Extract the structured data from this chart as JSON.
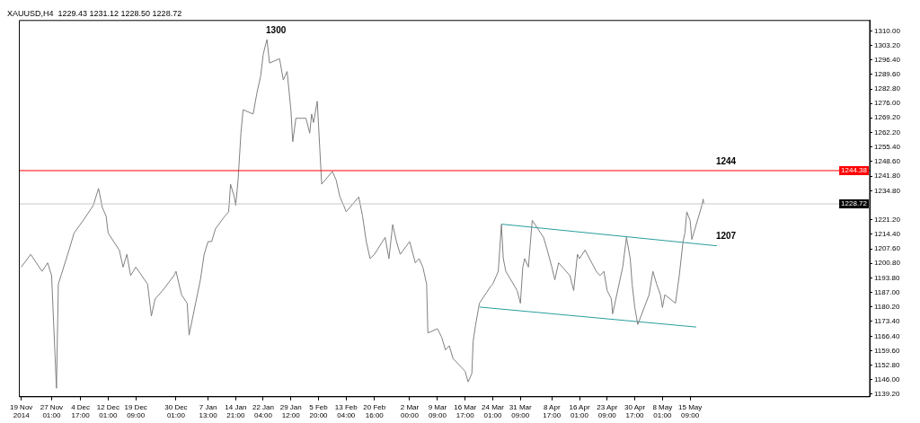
{
  "chart_data": {
    "type": "line",
    "title": "XAUUSD,H4  1229.43 1231.12 1228.50 1228.72",
    "xlim": [
      "2014-11-18T12:00",
      "2015-07-02T00:00"
    ],
    "xticks": [
      {
        "value": "2014-11-19T00:00",
        "label": "19 Nov 2014"
      },
      {
        "value": "2014-11-27T01:00",
        "label": "27 Nov 01:00"
      },
      {
        "value": "2014-12-04T17:00",
        "label": "4 Dec 17:00"
      },
      {
        "value": "2014-12-12T01:00",
        "label": "12 Dec 01:00"
      },
      {
        "value": "2014-12-19T09:00",
        "label": "19 Dec 09:00"
      },
      {
        "value": "2014-12-30T01:00",
        "label": "30 Dec 01:00"
      },
      {
        "value": "2015-01-07T13:00",
        "label": "7 Jan 13:00"
      },
      {
        "value": "2015-01-14T21:00",
        "label": "14 Jan 21:00"
      },
      {
        "value": "2015-01-22T04:00",
        "label": "22 Jan 04:00"
      },
      {
        "value": "2015-01-29T12:00",
        "label": "29 Jan 12:00"
      },
      {
        "value": "2015-02-05T20:00",
        "label": "5 Feb 20:00"
      },
      {
        "value": "2015-02-13T04:00",
        "label": "13 Feb 04:00"
      },
      {
        "value": "2015-02-20T16:00",
        "label": "20 Feb 16:00"
      },
      {
        "value": "2015-03-02T00:00",
        "label": "2 Mar 00:00"
      },
      {
        "value": "2015-03-09T09:00",
        "label": "9 Mar 09:00"
      },
      {
        "value": "2015-03-16T17:00",
        "label": "16 Mar 17:00"
      },
      {
        "value": "2015-03-24T01:00",
        "label": "24 Mar 01:00"
      },
      {
        "value": "2015-03-31T09:00",
        "label": "31 Mar 09:00"
      },
      {
        "value": "2015-04-08T17:00",
        "label": "8 Apr 17:00"
      },
      {
        "value": "2015-04-16T01:00",
        "label": "16 Apr 01:00"
      },
      {
        "value": "2015-04-23T09:00",
        "label": "23 Apr 09:00"
      },
      {
        "value": "2015-04-30T17:00",
        "label": "30 Apr 17:00"
      },
      {
        "value": "2015-05-08T01:00",
        "label": "8 May 01:00"
      },
      {
        "value": "2015-05-15T09:00",
        "label": "15 May 09:00"
      }
    ],
    "ylim": [
      1138,
      1315
    ],
    "yticks": [
      {
        "value": 1139.2,
        "label": "1139.20"
      },
      {
        "value": 1146,
        "label": "1146.00"
      },
      {
        "value": 1152.8,
        "label": "1152.80"
      },
      {
        "value": 1159.6,
        "label": "1159.60"
      },
      {
        "value": 1166.4,
        "label": "1166.40"
      },
      {
        "value": 1173.4,
        "label": "1173.40"
      },
      {
        "value": 1180.2,
        "label": "1180.20"
      },
      {
        "value": 1187,
        "label": "1187.00"
      },
      {
        "value": 1193.8,
        "label": "1193.80"
      },
      {
        "value": 1200.8,
        "label": "1200.80"
      },
      {
        "value": 1207.6,
        "label": "1207.60"
      },
      {
        "value": 1214.4,
        "label": "1214.40"
      },
      {
        "value": 1221.2,
        "label": "1221.20"
      },
      {
        "value": 1234.8,
        "label": "1234.80"
      },
      {
        "value": 1241.8,
        "label": "1241.80"
      },
      {
        "value": 1248.6,
        "label": "1248.60"
      },
      {
        "value": 1255.4,
        "label": "1255.40"
      },
      {
        "value": 1262.2,
        "label": "1262.20"
      },
      {
        "value": 1269.2,
        "label": "1269.20"
      },
      {
        "value": 1276,
        "label": "1276.00"
      },
      {
        "value": 1282.8,
        "label": "1282.80"
      },
      {
        "value": 1289.6,
        "label": "1289.60"
      },
      {
        "value": 1296.4,
        "label": "1296.40"
      },
      {
        "value": 1303.2,
        "label": "1303.20"
      },
      {
        "value": 1310,
        "label": "1310.00"
      }
    ],
    "grid": false,
    "legend": false,
    "ref_lines": [
      {
        "axis": "y",
        "value": 1244.38,
        "label": "1244.38",
        "color": "#ff0000"
      },
      {
        "axis": "y",
        "value": 1228.72,
        "label": "1228.72",
        "color": "#c8c8c8"
      }
    ],
    "annotations": [
      {
        "text": "1300",
        "x": "2015-01-23T04:00",
        "y": 1306
      },
      {
        "text": "1244",
        "x": "2015-05-22T12:00",
        "y": 1244.38
      },
      {
        "text": "1207",
        "x": "2015-05-22T12:00",
        "y": 1209
      }
    ],
    "series": [
      {
        "color": "#808080",
        "x": [
          "2014-11-19T00:00",
          "2014-11-21T12:00",
          "2014-11-24T12:00",
          "2014-11-26T00:00",
          "2014-11-27T01:00",
          "2014-11-28T08:00",
          "2014-11-28T20:00",
          "2014-12-01T16:00",
          "2014-12-03T00:00",
          "2014-12-05T20:00",
          "2014-12-08T02:00",
          "2014-12-09T12:00",
          "2014-12-10T12:00",
          "2014-12-11T12:00",
          "2014-12-12T01:00",
          "2014-12-15T00:00",
          "2014-12-16T00:00",
          "2014-12-17T00:00",
          "2014-12-18T00:00",
          "2014-12-19T09:00",
          "2014-12-22T12:00",
          "2014-12-23T12:00",
          "2014-12-24T12:00",
          "2014-12-26T12:00",
          "2014-12-29T12:00",
          "2014-12-30T01:00",
          "2014-12-31T12:00",
          "2015-01-02T00:00",
          "2015-01-02T12:00",
          "2015-01-05T12:00",
          "2015-01-06T12:00",
          "2015-01-07T13:00",
          "2015-01-08T12:00",
          "2015-01-09T12:00",
          "2015-01-12T00:00",
          "2015-01-13T00:00",
          "2015-01-13T12:00",
          "2015-01-14T12:00",
          "2015-01-14T21:00",
          "2015-01-15T12:00",
          "2015-01-16T06:00",
          "2015-01-16T20:00",
          "2015-01-19T12:00",
          "2015-01-20T12:00",
          "2015-01-21T12:00",
          "2015-01-22T04:00",
          "2015-01-22T20:00",
          "2015-01-23T04:00",
          "2015-01-23T20:00",
          "2015-01-26T12:00",
          "2015-01-27T12:00",
          "2015-01-28T12:00",
          "2015-01-29T12:00",
          "2015-01-30T00:00",
          "2015-01-30T20:00",
          "2015-02-02T12:00",
          "2015-02-03T12:00",
          "2015-02-04T00:00",
          "2015-02-04T12:00",
          "2015-02-05T12:00",
          "2015-02-06T16:00",
          "2015-02-09T12:00",
          "2015-02-10T12:00",
          "2015-02-11T12:00",
          "2015-02-12T12:00",
          "2015-02-13T04:00",
          "2015-02-16T12:00",
          "2015-02-17T12:00",
          "2015-02-18T12:00",
          "2015-02-19T12:00",
          "2015-02-20T16:00",
          "2015-02-23T12:00",
          "2015-02-24T12:00",
          "2015-02-25T12:00",
          "2015-02-26T12:00",
          "2015-02-27T12:00",
          "2015-03-02T00:00",
          "2015-03-03T12:00",
          "2015-03-04T12:00",
          "2015-03-05T12:00",
          "2015-03-06T12:00",
          "2015-03-06T20:00",
          "2015-03-09T09:00",
          "2015-03-10T12:00",
          "2015-03-11T12:00",
          "2015-03-12T12:00",
          "2015-03-13T12:00",
          "2015-03-16T17:00",
          "2015-03-17T12:00",
          "2015-03-18T12:00",
          "2015-03-18T20:00",
          "2015-03-19T12:00",
          "2015-03-20T12:00",
          "2015-03-23T12:00",
          "2015-03-24T01:00",
          "2015-03-25T12:00",
          "2015-03-26T08:00",
          "2015-03-26T20:00",
          "2015-03-27T12:00",
          "2015-03-30T12:00",
          "2015-03-31T09:00",
          "2015-04-01T00:00",
          "2015-04-01T12:00",
          "2015-04-02T12:00",
          "2015-04-03T12:00",
          "2015-04-06T12:00",
          "2015-04-07T12:00",
          "2015-04-08T17:00",
          "2015-04-09T12:00",
          "2015-04-10T12:00",
          "2015-04-13T12:00",
          "2015-04-14T12:00",
          "2015-04-15T12:00",
          "2015-04-16T01:00",
          "2015-04-17T12:00",
          "2015-04-20T12:00",
          "2015-04-21T12:00",
          "2015-04-22T12:00",
          "2015-04-23T09:00",
          "2015-04-24T12:00",
          "2015-04-24T20:00",
          "2015-04-27T12:00",
          "2015-04-28T12:00",
          "2015-04-29T12:00",
          "2015-04-30T00:00",
          "2015-04-30T17:00",
          "2015-05-01T12:00",
          "2015-05-04T12:00",
          "2015-05-05T12:00",
          "2015-05-06T12:00",
          "2015-05-07T12:00",
          "2015-05-08T01:00",
          "2015-05-08T16:00",
          "2015-05-11T12:00",
          "2015-05-12T12:00",
          "2015-05-13T12:00",
          "2015-05-14T00:00",
          "2015-05-14T12:00",
          "2015-05-15T09:00",
          "2015-05-15T20:00",
          "2015-05-18T12:00",
          "2015-05-18T20:00",
          "2015-05-19T00:00"
        ],
        "values": [
          1199,
          1205,
          1197,
          1201,
          1195,
          1142,
          1191,
          1207,
          1215,
          1222,
          1228,
          1236,
          1227,
          1223,
          1215,
          1207,
          1199,
          1205,
          1195,
          1199,
          1191,
          1176,
          1184,
          1188,
          1195,
          1197,
          1186,
          1182,
          1167,
          1193,
          1205,
          1211,
          1211,
          1217,
          1223,
          1225,
          1238,
          1232,
          1228,
          1240,
          1262,
          1273,
          1271,
          1281,
          1289,
          1299,
          1304,
          1306,
          1295,
          1297,
          1287,
          1291,
          1273,
          1258,
          1269,
          1269,
          1262,
          1271,
          1267,
          1277,
          1238,
          1244,
          1240,
          1232,
          1228,
          1225,
          1232,
          1223,
          1211,
          1203,
          1205,
          1213,
          1203,
          1219,
          1211,
          1205,
          1211,
          1201,
          1203,
          1199,
          1191,
          1168,
          1170,
          1166,
          1160,
          1162,
          1156,
          1150,
          1145,
          1149,
          1164,
          1172,
          1182,
          1190,
          1191,
          1197,
          1219,
          1203,
          1197,
          1188,
          1182,
          1199,
          1203,
          1199,
          1221,
          1213,
          1207,
          1199,
          1193,
          1201,
          1195,
          1188,
          1205,
          1203,
          1207,
          1197,
          1195,
          1197,
          1188,
          1184,
          1177,
          1199,
          1213,
          1203,
          1191,
          1180,
          1172,
          1186,
          1197,
          1191,
          1186,
          1180,
          1186,
          1182,
          1195,
          1211,
          1215,
          1225,
          1221,
          1212,
          1228,
          1231,
          1228.7
        ]
      },
      {
        "color": "#2a9d9d",
        "x": [
          "2015-03-26T08:00",
          "2015-05-22T12:00"
        ],
        "values": [
          1219.2,
          1209
        ]
      },
      {
        "color": "#2a9d9d",
        "x": [
          "2015-03-20T12:00",
          "2015-05-17T00:00"
        ],
        "values": [
          1180.2,
          1170.8
        ]
      }
    ]
  }
}
